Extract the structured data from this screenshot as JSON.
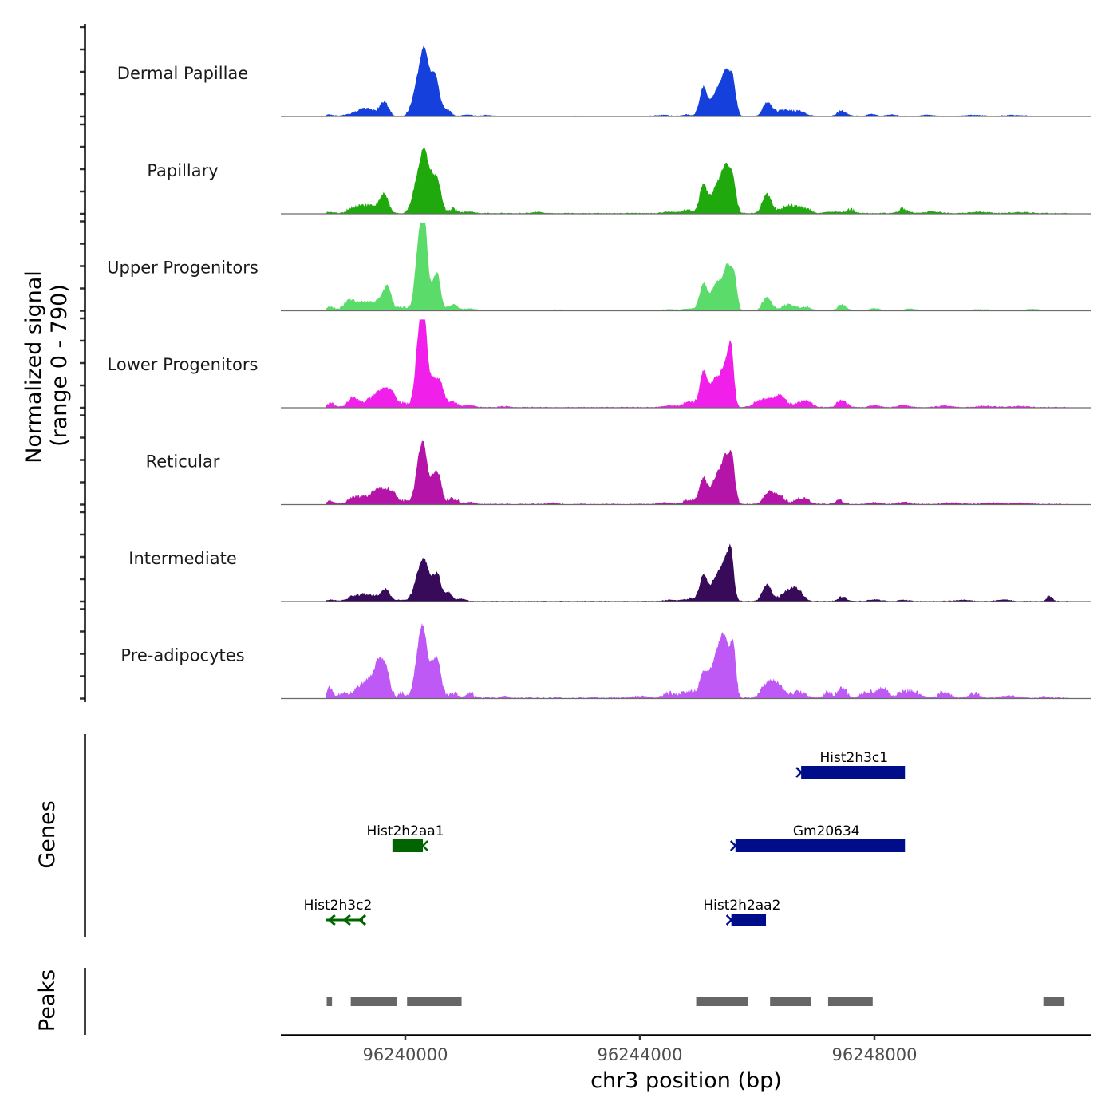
{
  "chart_data": {
    "type": "area",
    "title": "",
    "ylabel": "Normalized signal\n(range 0 - 790)",
    "ylabel_lines": [
      "Normalized signal",
      "(range 0 - 790)"
    ],
    "xlabel": "chr3 position (bp)",
    "xlim": [
      96237880,
      96251700
    ],
    "ylim": [
      0,
      790
    ],
    "y_ticks": [
      0,
      200,
      400,
      600,
      800
    ],
    "x_ticks": [
      96240000,
      96244000,
      96248000
    ],
    "x_tick_labels": [
      "96240000",
      "96244000",
      "96248000"
    ],
    "grid": false,
    "region_start": 96238650,
    "region_end": 96251300,
    "tracks": [
      {
        "name": "Dermal Papillae",
        "color": "#1640DB",
        "noise": 8,
        "peaks": [
          [
            96238700,
            60,
            14
          ],
          [
            96239050,
            120,
            12
          ],
          [
            96239280,
            110,
            55
          ],
          [
            96239460,
            90,
            28
          ],
          [
            96239640,
            70,
            120
          ],
          [
            96240230,
            90,
            330
          ],
          [
            96240330,
            60,
            390
          ],
          [
            96240450,
            60,
            260
          ],
          [
            96240540,
            55,
            240
          ],
          [
            96240700,
            70,
            60
          ],
          [
            96241050,
            80,
            15
          ],
          [
            96241400,
            80,
            10
          ],
          [
            96244400,
            100,
            10
          ],
          [
            96244800,
            80,
            14
          ],
          [
            96245080,
            60,
            240
          ],
          [
            96245330,
            110,
            230
          ],
          [
            96245480,
            70,
            300
          ],
          [
            96245590,
            50,
            250
          ],
          [
            96246180,
            75,
            120
          ],
          [
            96246450,
            110,
            45
          ],
          [
            96246700,
            120,
            38
          ],
          [
            96247450,
            80,
            40
          ],
          [
            96247950,
            80,
            18
          ],
          [
            96248300,
            80,
            15
          ],
          [
            96248900,
            120,
            10
          ],
          [
            96249700,
            160,
            10
          ],
          [
            96250400,
            160,
            10
          ]
        ]
      },
      {
        "name": "Papillary",
        "color": "#1FA90C",
        "noise": 10,
        "peaks": [
          [
            96238700,
            80,
            12
          ],
          [
            96239150,
            110,
            50
          ],
          [
            96239400,
            120,
            60
          ],
          [
            96239640,
            70,
            160
          ],
          [
            96240230,
            90,
            330
          ],
          [
            96240330,
            60,
            360
          ],
          [
            96240450,
            60,
            270
          ],
          [
            96240560,
            55,
            250
          ],
          [
            96240800,
            90,
            30
          ],
          [
            96241100,
            80,
            16
          ],
          [
            96242250,
            90,
            12
          ],
          [
            96244500,
            100,
            14
          ],
          [
            96244800,
            120,
            22
          ],
          [
            96245080,
            60,
            240
          ],
          [
            96245330,
            110,
            250
          ],
          [
            96245480,
            70,
            320
          ],
          [
            96245590,
            50,
            240
          ],
          [
            96246170,
            75,
            160
          ],
          [
            96246550,
            120,
            60
          ],
          [
            96246800,
            100,
            35
          ],
          [
            96247300,
            150,
            14
          ],
          [
            96247600,
            80,
            22
          ],
          [
            96248500,
            90,
            30
          ],
          [
            96249000,
            120,
            16
          ],
          [
            96249800,
            160,
            12
          ],
          [
            96250500,
            160,
            10
          ]
        ]
      },
      {
        "name": "Upper Progenitors",
        "color": "#5BDB6A",
        "noise": 8,
        "peaks": [
          [
            96238720,
            80,
            30
          ],
          [
            96239050,
            90,
            85
          ],
          [
            96239300,
            110,
            70
          ],
          [
            96239600,
            110,
            100
          ],
          [
            96239700,
            60,
            150
          ],
          [
            96239950,
            80,
            25
          ],
          [
            96240220,
            60,
            500
          ],
          [
            96240320,
            55,
            770
          ],
          [
            96240480,
            70,
            200
          ],
          [
            96240560,
            50,
            210
          ],
          [
            96240800,
            90,
            40
          ],
          [
            96241100,
            90,
            18
          ],
          [
            96242600,
            80,
            8
          ],
          [
            96244500,
            100,
            10
          ],
          [
            96244850,
            120,
            18
          ],
          [
            96245080,
            60,
            220
          ],
          [
            96245330,
            110,
            250
          ],
          [
            96245500,
            60,
            330
          ],
          [
            96245610,
            45,
            280
          ],
          [
            96246170,
            75,
            110
          ],
          [
            96246550,
            120,
            45
          ],
          [
            96246850,
            80,
            25
          ],
          [
            96247450,
            80,
            40
          ],
          [
            96248000,
            90,
            20
          ],
          [
            96248600,
            90,
            16
          ],
          [
            96249800,
            160,
            10
          ],
          [
            96250700,
            120,
            12
          ]
        ]
      },
      {
        "name": "Lower Progenitors",
        "color": "#F020EA",
        "noise": 10,
        "peaks": [
          [
            96238720,
            80,
            25
          ],
          [
            96239100,
            80,
            75
          ],
          [
            96239350,
            110,
            40
          ],
          [
            96239580,
            110,
            130
          ],
          [
            96239760,
            90,
            110
          ],
          [
            96240000,
            80,
            25
          ],
          [
            96240230,
            60,
            580
          ],
          [
            96240320,
            50,
            700
          ],
          [
            96240460,
            70,
            250
          ],
          [
            96240600,
            60,
            190
          ],
          [
            96240800,
            90,
            40
          ],
          [
            96241100,
            90,
            18
          ],
          [
            96241700,
            80,
            10
          ],
          [
            96244500,
            100,
            18
          ],
          [
            96244850,
            120,
            35
          ],
          [
            96245080,
            60,
            280
          ],
          [
            96245300,
            110,
            250
          ],
          [
            96245480,
            70,
            320
          ],
          [
            96245560,
            45,
            380
          ],
          [
            96246150,
            150,
            70
          ],
          [
            96246400,
            90,
            80
          ],
          [
            96246800,
            120,
            50
          ],
          [
            96247450,
            80,
            55
          ],
          [
            96248000,
            90,
            18
          ],
          [
            96248500,
            90,
            20
          ],
          [
            96249200,
            120,
            15
          ],
          [
            96249900,
            160,
            12
          ],
          [
            96250500,
            160,
            10
          ]
        ]
      },
      {
        "name": "Reticular",
        "color": "#B415A8",
        "noise": 10,
        "peaks": [
          [
            96238720,
            80,
            22
          ],
          [
            96239150,
            110,
            55
          ],
          [
            96239380,
            100,
            45
          ],
          [
            96239550,
            100,
            110
          ],
          [
            96239750,
            90,
            110
          ],
          [
            96240000,
            80,
            20
          ],
          [
            96240230,
            60,
            360
          ],
          [
            96240320,
            50,
            400
          ],
          [
            96240460,
            70,
            220
          ],
          [
            96240570,
            55,
            200
          ],
          [
            96240800,
            90,
            40
          ],
          [
            96241100,
            90,
            18
          ],
          [
            96242500,
            80,
            12
          ],
          [
            96244400,
            100,
            14
          ],
          [
            96244850,
            120,
            30
          ],
          [
            96245080,
            60,
            210
          ],
          [
            96245330,
            110,
            250
          ],
          [
            96245480,
            70,
            320
          ],
          [
            96245580,
            45,
            300
          ],
          [
            96246180,
            75,
            90
          ],
          [
            96246350,
            90,
            80
          ],
          [
            96246750,
            120,
            45
          ],
          [
            96247400,
            80,
            25
          ],
          [
            96248000,
            100,
            15
          ],
          [
            96248500,
            90,
            20
          ],
          [
            96249300,
            120,
            15
          ],
          [
            96250000,
            160,
            12
          ],
          [
            96250500,
            160,
            10
          ]
        ]
      },
      {
        "name": "Intermediate",
        "color": "#380B5A",
        "noise": 8,
        "peaks": [
          [
            96238720,
            80,
            14
          ],
          [
            96239150,
            120,
            40
          ],
          [
            96239400,
            120,
            50
          ],
          [
            96239660,
            70,
            100
          ],
          [
            96239900,
            80,
            12
          ],
          [
            96240230,
            80,
            230
          ],
          [
            96240330,
            60,
            230
          ],
          [
            96240450,
            70,
            160
          ],
          [
            96240560,
            55,
            190
          ],
          [
            96240730,
            60,
            80
          ],
          [
            96240950,
            80,
            20
          ],
          [
            96244500,
            100,
            12
          ],
          [
            96244850,
            120,
            20
          ],
          [
            96245080,
            60,
            220
          ],
          [
            96245330,
            110,
            230
          ],
          [
            96245480,
            70,
            270
          ],
          [
            96245560,
            45,
            300
          ],
          [
            96246170,
            75,
            140
          ],
          [
            96246550,
            120,
            90
          ],
          [
            96246700,
            90,
            60
          ],
          [
            96247450,
            80,
            28
          ],
          [
            96248000,
            100,
            15
          ],
          [
            96248500,
            90,
            12
          ],
          [
            96249500,
            120,
            12
          ],
          [
            96250200,
            120,
            14
          ],
          [
            96250990,
            50,
            40
          ]
        ]
      },
      {
        "name": "Pre-adipocytes",
        "color": "#BF59F5",
        "noise": 14,
        "peaks": [
          [
            96238700,
            45,
            80
          ],
          [
            96238900,
            90,
            20
          ],
          [
            96239200,
            120,
            55
          ],
          [
            96239420,
            120,
            150
          ],
          [
            96239560,
            70,
            250
          ],
          [
            96239680,
            60,
            200
          ],
          [
            96239950,
            70,
            30
          ],
          [
            96240230,
            70,
            380
          ],
          [
            96240320,
            60,
            420
          ],
          [
            96240460,
            60,
            240
          ],
          [
            96240560,
            55,
            260
          ],
          [
            96240800,
            90,
            30
          ],
          [
            96241100,
            80,
            25
          ],
          [
            96241700,
            60,
            18
          ],
          [
            96244000,
            120,
            18
          ],
          [
            96244500,
            110,
            30
          ],
          [
            96244850,
            120,
            45
          ],
          [
            96245080,
            60,
            180
          ],
          [
            96245300,
            110,
            320
          ],
          [
            96245450,
            80,
            420
          ],
          [
            96245590,
            45,
            400
          ],
          [
            96246150,
            90,
            90
          ],
          [
            96246330,
            110,
            120
          ],
          [
            96246700,
            120,
            40
          ],
          [
            96247200,
            60,
            40
          ],
          [
            96247450,
            70,
            75
          ],
          [
            96247900,
            120,
            45
          ],
          [
            96248150,
            80,
            80
          ],
          [
            96248600,
            150,
            55
          ],
          [
            96249200,
            100,
            40
          ],
          [
            96249700,
            120,
            25
          ],
          [
            96250300,
            120,
            20
          ],
          [
            96250900,
            80,
            12
          ]
        ]
      }
    ],
    "genes": [
      {
        "name": "Hist2h3c1",
        "start": 96246750,
        "end": 96248520,
        "strand": "+",
        "row": 1,
        "color": "#000D8A",
        "label_center": 96247650
      },
      {
        "name": "Gm20634",
        "start": 96245630,
        "end": 96248520,
        "strand": "+",
        "row": 2,
        "color": "#000D8A",
        "label_center": 96247180
      },
      {
        "name": "Hist2h2aa1",
        "start": 96239780,
        "end": 96240300,
        "strand": "-",
        "row": 2,
        "color": "#006400",
        "label_center": 96240000
      },
      {
        "name": "Hist2h3c2",
        "start": 96238650,
        "end": 96239280,
        "strand": "-",
        "row": 3,
        "color": "#006400",
        "label_center": 96238850,
        "intron_only": true
      },
      {
        "name": "Hist2h2aa2",
        "start": 96245560,
        "end": 96246150,
        "strand": "+",
        "row": 3,
        "color": "#000D8A",
        "label_center": 96245740
      }
    ],
    "peaks_track": [
      [
        96238660,
        96238750
      ],
      [
        96239070,
        96239850
      ],
      [
        96240030,
        96240960
      ],
      [
        96244960,
        96245850
      ],
      [
        96246220,
        96246920
      ],
      [
        96247210,
        96247970
      ],
      [
        96250880,
        96251240
      ]
    ],
    "peaks_color": "#666666",
    "gene_track_label": "Genes",
    "peak_track_label": "Peaks"
  }
}
